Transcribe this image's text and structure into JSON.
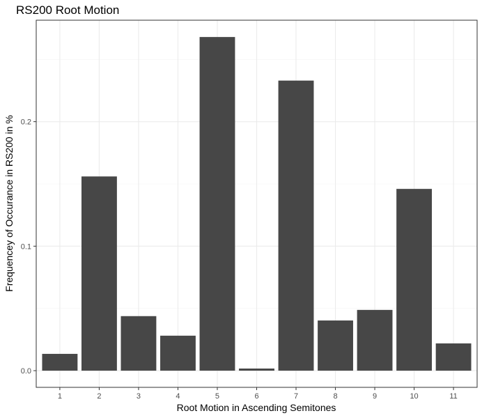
{
  "chart_data": {
    "type": "bar",
    "title": "RS200 Root Motion",
    "xlabel": "Root Motion in Ascending Semitones",
    "ylabel": "Frequencey of Occurance in RS200 in %",
    "categories": [
      "1",
      "2",
      "3",
      "4",
      "5",
      "6",
      "7",
      "8",
      "9",
      "10",
      "11"
    ],
    "values": [
      0.0135,
      0.156,
      0.0438,
      0.0281,
      0.268,
      0.0017,
      0.233,
      0.0403,
      0.0488,
      0.146,
      0.0219
    ],
    "yticks": [
      0.0,
      0.1,
      0.2
    ],
    "ytick_labels": [
      "0.0",
      "0.1",
      "0.2"
    ],
    "ylim": [
      -0.0134,
      0.2815
    ],
    "grid": true,
    "legend": "none",
    "colors": {
      "bar": "#474747",
      "grid_major": "#ebebeb",
      "grid_minor": "#f4f4f4",
      "panel_border": "#333333",
      "tick": "#333333"
    }
  }
}
